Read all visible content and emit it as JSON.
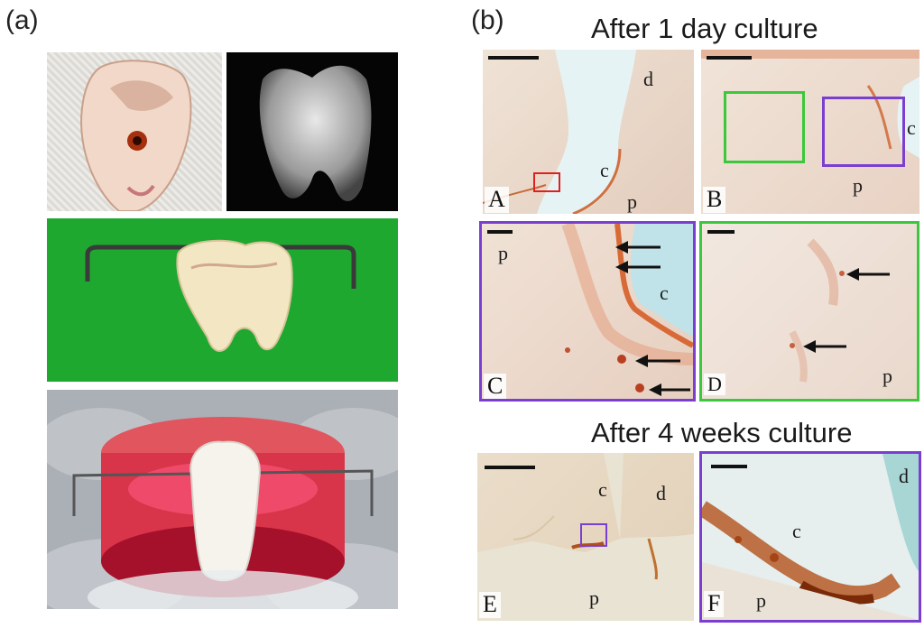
{
  "panel_a": {
    "tag": "(a)"
  },
  "panel_b": {
    "tag": "(b)",
    "heading_top": "After 1 day culture",
    "heading_bottom": "After 4 weeks culture",
    "subpanels": {
      "A": {
        "letter": "A",
        "labels": [
          "d",
          "c",
          "p"
        ]
      },
      "B": {
        "letter": "B",
        "labels": [
          "c",
          "p"
        ]
      },
      "C": {
        "letter": "C",
        "labels": [
          "p",
          "c"
        ]
      },
      "D": {
        "letter": "D",
        "labels": [
          "p"
        ]
      },
      "E": {
        "letter": "E",
        "labels": [
          "c",
          "d",
          "p"
        ]
      },
      "F": {
        "letter": "F",
        "labels": [
          "d",
          "c",
          "p"
        ]
      }
    }
  },
  "colors": {
    "green_background": "#1fa82f",
    "purple_box": "#7a3fd0",
    "green_box": "#3cc83c",
    "red_box": "#e02020",
    "stain_red": "#c2410c"
  }
}
